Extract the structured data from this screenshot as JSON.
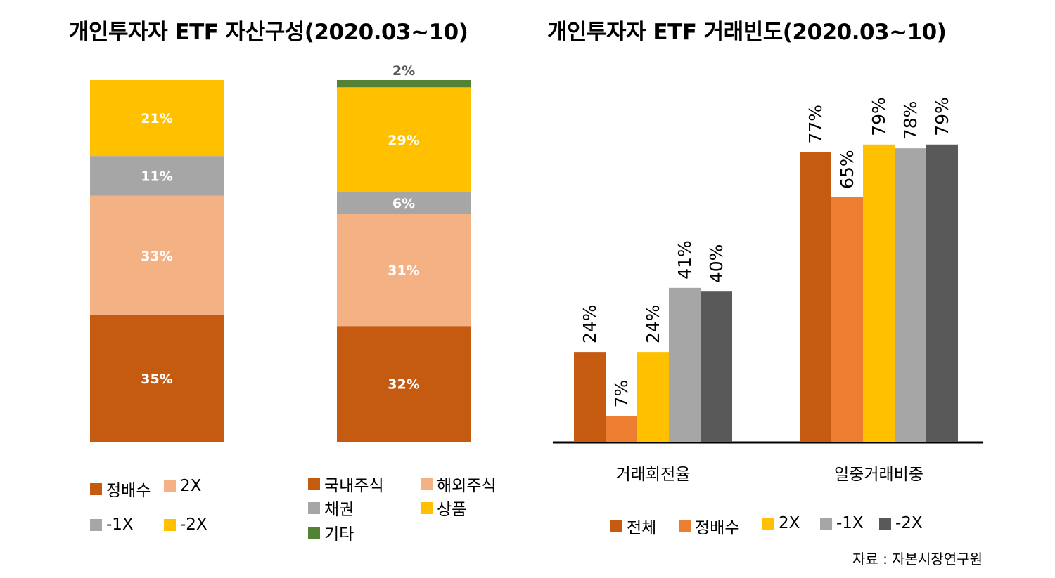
{
  "titles": {
    "left": "개인투자자 ETF 자산구성(2020.03~10)",
    "right": "개인투자자 ETF 거래빈도(2020.03~10)"
  },
  "colors": {
    "정배수": "#c55a11",
    "2X": "#f4b183",
    "-1X": "#a6a6a6",
    "-2X": "#ffc000",
    "국내주식": "#c55a11",
    "해외주식": "#f4b183",
    "채권": "#a6a6a6",
    "상품": "#ffc000",
    "기타": "#548235",
    "전체": "#c55a11",
    "정배수_freq": "#ed7d31",
    "2X_freq": "#ffc000",
    "-1X_freq": "#a6a6a6",
    "-2X_freq": "#595959"
  },
  "legend1": [
    "정배수",
    "2X",
    "-1X",
    "-2X"
  ],
  "legend2": [
    "국내주식",
    "해외주식",
    "채권",
    "상품",
    "기타"
  ],
  "legend3": [
    "전체",
    "정배수",
    "2X",
    "-1X",
    "-2X"
  ],
  "source": "자료 : 자본시장연구원",
  "chart_data": [
    {
      "type": "bar",
      "stacked": true,
      "segments": [
        {
          "name": "정배수",
          "value": 35,
          "label": "35%"
        },
        {
          "name": "2X",
          "value": 33,
          "label": "33%"
        },
        {
          "name": "-1X",
          "value": 11,
          "label": "11%"
        },
        {
          "name": "-2X",
          "value": 21,
          "label": "21%"
        }
      ]
    },
    {
      "type": "bar",
      "stacked": true,
      "segments": [
        {
          "name": "국내주식",
          "value": 32,
          "label": "32%"
        },
        {
          "name": "해외주식",
          "value": 31,
          "label": "31%"
        },
        {
          "name": "채권",
          "value": 6,
          "label": "6%"
        },
        {
          "name": "상품",
          "value": 29,
          "label": "29%"
        },
        {
          "name": "기타",
          "value": 2,
          "label": "2%"
        }
      ]
    },
    {
      "type": "bar",
      "categories": [
        "거래회전율",
        "일중거래비중"
      ],
      "series": [
        {
          "name": "전체",
          "values": [
            24,
            77
          ],
          "labels": [
            "24%",
            "77%"
          ]
        },
        {
          "name": "정배수",
          "values": [
            7,
            65
          ],
          "labels": [
            "7%",
            "65%"
          ]
        },
        {
          "name": "2X",
          "values": [
            24,
            79
          ],
          "labels": [
            "24%",
            "79%"
          ]
        },
        {
          "name": "-1X",
          "values": [
            41,
            78
          ],
          "labels": [
            "41%",
            "78%"
          ]
        },
        {
          "name": "-2X",
          "values": [
            40,
            79
          ],
          "labels": [
            "40%",
            "79%"
          ]
        }
      ],
      "ylim": [
        0,
        100
      ]
    }
  ]
}
